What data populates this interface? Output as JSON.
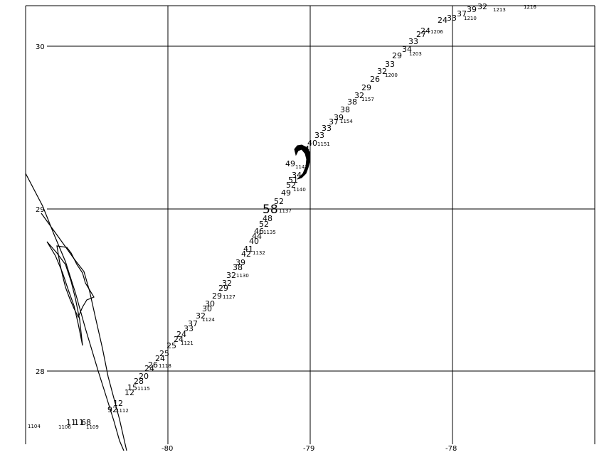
{
  "lat_labels": [
    "30",
    "29",
    "28"
  ],
  "lon_labels": [
    "-80",
    "-79",
    "-78"
  ],
  "wind_labels": [
    "39",
    "32",
    "24",
    "33",
    "37",
    "24",
    "27",
    "33",
    "34",
    "29",
    "33",
    "32",
    "26",
    "29",
    "32",
    "38",
    "38",
    "39",
    "37",
    "33",
    "33",
    "40",
    "4",
    "49",
    "34",
    "51",
    "52",
    "49",
    "52",
    "58",
    "48",
    "52",
    "46",
    "44",
    "40",
    "41",
    "42",
    "39",
    "38",
    "32",
    "32",
    "29",
    "29",
    "30",
    "30",
    "37",
    "32",
    "33",
    "24",
    "24",
    "25",
    "25",
    "24",
    "24",
    "26",
    "28",
    "20",
    "15",
    "12",
    "12",
    "92",
    "11",
    "11",
    "68"
  ],
  "time_labels": [
    "1216",
    "1213",
    "1210",
    "1206",
    "1203",
    "1200",
    "1157",
    "1154",
    "1151",
    "1147",
    "1140",
    "1137",
    "1135",
    "1132",
    "1130",
    "1127",
    "1124",
    "1121",
    "1118",
    "1115",
    "1112",
    "1109",
    "1106",
    "1104"
  ]
}
